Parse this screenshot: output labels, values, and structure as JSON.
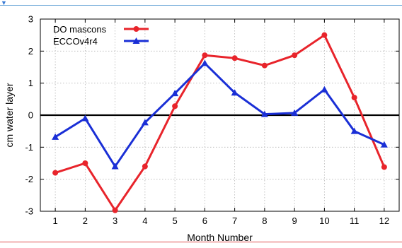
{
  "chart_data": {
    "type": "line",
    "xlabel": "Month Number",
    "ylabel": "cm water layer",
    "x": [
      1,
      2,
      3,
      4,
      5,
      6,
      7,
      8,
      9,
      10,
      11,
      12
    ],
    "xlim": [
      0.5,
      12.5
    ],
    "ylim": [
      -3,
      3
    ],
    "yticks": [
      -3,
      -2,
      -1,
      0,
      1,
      2,
      3
    ],
    "grid": true,
    "legend_position": "top-left",
    "zero_line": true,
    "series": [
      {
        "name": "DO mascons",
        "color": "#e8242b",
        "marker": "circle",
        "values": [
          -1.8,
          -1.5,
          -2.97,
          -1.6,
          0.28,
          1.87,
          1.78,
          1.55,
          1.87,
          2.5,
          0.55,
          -1.62
        ]
      },
      {
        "name": "ECCOv4r4",
        "color": "#1a2fd6",
        "marker": "triangle",
        "values": [
          -0.68,
          -0.1,
          -1.6,
          -0.23,
          0.68,
          1.62,
          0.7,
          0.03,
          0.07,
          0.8,
          -0.5,
          -0.92
        ]
      }
    ]
  },
  "decor": {
    "corner_mark": "▼"
  }
}
